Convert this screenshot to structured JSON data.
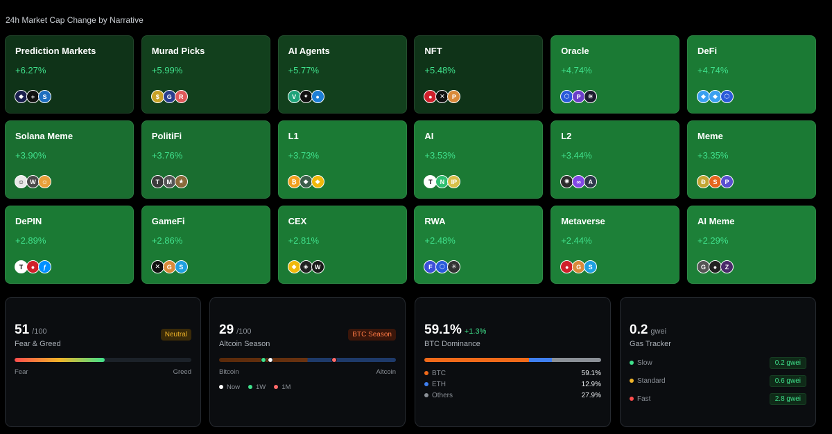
{
  "page_title": "24h Market Cap Change by Narrative",
  "tiles": [
    {
      "name": "Prediction Markets",
      "change": "+6.27%",
      "bg": "#0f3318",
      "coins": [
        {
          "icon": "polymarket-icon",
          "bg": "#1a1f4d",
          "g": "◆"
        },
        {
          "icon": "plus-icon",
          "bg": "#111",
          "g": "+"
        },
        {
          "icon": "sx-icon",
          "bg": "#1e6fbf",
          "g": "S"
        }
      ]
    },
    {
      "name": "Murad Picks",
      "change": "+5.99%",
      "bg": "#12401d",
      "coins": [
        {
          "icon": "spx-icon",
          "bg": "#c9a227",
          "g": "$"
        },
        {
          "icon": "gigachad-icon",
          "bg": "#2a3f8f",
          "g": "G"
        },
        {
          "icon": "retardio-icon",
          "bg": "#e05a5a",
          "g": "R"
        }
      ]
    },
    {
      "name": "AI Agents",
      "change": "+5.77%",
      "bg": "#12401d",
      "coins": [
        {
          "icon": "virtuals-icon",
          "bg": "#1fa37a",
          "g": "V"
        },
        {
          "icon": "ai16z-icon",
          "bg": "#111",
          "g": "✦"
        },
        {
          "icon": "aixbt-icon",
          "bg": "#1d7fd6",
          "g": "●"
        }
      ]
    },
    {
      "name": "NFT",
      "change": "+5.48%",
      "bg": "#0f3318",
      "coins": [
        {
          "icon": "apecoin-icon",
          "bg": "#d0202b",
          "g": "●"
        },
        {
          "icon": "x-icon",
          "bg": "#111",
          "g": "✕"
        },
        {
          "icon": "pengu-icon",
          "bg": "#d98a3a",
          "g": "P"
        }
      ]
    },
    {
      "name": "Oracle",
      "change": "+4.74%",
      "bg": "#1b7a34",
      "coins": [
        {
          "icon": "chainlink-icon",
          "bg": "#2a5ada",
          "g": "⬡"
        },
        {
          "icon": "pyth-icon",
          "bg": "#6b3fc9",
          "g": "P"
        },
        {
          "icon": "api3-icon",
          "bg": "#1b1b2e",
          "g": "≋"
        }
      ]
    },
    {
      "name": "DeFi",
      "change": "+4.74%",
      "bg": "#1b7a34",
      "coins": [
        {
          "icon": "lido-icon",
          "bg": "#3aa0f0",
          "g": "◆"
        },
        {
          "icon": "uniswap-icon",
          "bg": "#3aa0f0",
          "g": "◆"
        },
        {
          "icon": "chainlink-icon",
          "bg": "#2a5ada",
          "g": "⬡"
        }
      ]
    },
    {
      "name": "Solana Meme",
      "change": "+3.90%",
      "bg": "#1a6e30",
      "coins": [
        {
          "icon": "bonk-icon",
          "bg": "#e9e9e9",
          "g": "☺"
        },
        {
          "icon": "wif-icon",
          "bg": "#4a4a4a",
          "g": "W"
        },
        {
          "icon": "popcat-icon",
          "bg": "#e8a03a",
          "g": "☺"
        }
      ]
    },
    {
      "name": "PolitiFi",
      "change": "+3.76%",
      "bg": "#1a6e30",
      "coins": [
        {
          "icon": "trump-icon",
          "bg": "#3a3a3a",
          "g": "T"
        },
        {
          "icon": "melania-icon",
          "bg": "#555",
          "g": "M"
        },
        {
          "icon": "maga-icon",
          "bg": "#8a6a3a",
          "g": "★"
        }
      ]
    },
    {
      "name": "L1",
      "change": "+3.73%",
      "bg": "#1b7a34",
      "coins": [
        {
          "icon": "bitcoin-icon",
          "bg": "#f2a01e",
          "g": "₿"
        },
        {
          "icon": "ethereum-icon",
          "bg": "#3b5e4a",
          "g": "◆"
        },
        {
          "icon": "bnb-icon",
          "bg": "#f0b90b",
          "g": "◆"
        }
      ]
    },
    {
      "name": "AI",
      "change": "+3.53%",
      "bg": "#1b7a34",
      "coins": [
        {
          "icon": "tao-icon",
          "bg": "#fff",
          "g": "T"
        },
        {
          "icon": "near-icon",
          "bg": "#2fbf71",
          "g": "N"
        },
        {
          "icon": "ip-icon",
          "bg": "#d8c04a",
          "g": "IP"
        }
      ]
    },
    {
      "name": "L2",
      "change": "+3.44%",
      "bg": "#1b7a34",
      "coins": [
        {
          "icon": "mantle-icon",
          "bg": "#2c2c2c",
          "g": "✺"
        },
        {
          "icon": "polygon-icon",
          "bg": "#8247e5",
          "g": "∞"
        },
        {
          "icon": "arbitrum-icon",
          "bg": "#2d374b",
          "g": "A"
        }
      ]
    },
    {
      "name": "Meme",
      "change": "+3.35%",
      "bg": "#1b7a34",
      "coins": [
        {
          "icon": "doge-icon",
          "bg": "#c2a633",
          "g": "Ð"
        },
        {
          "icon": "shib-icon",
          "bg": "#e5661e",
          "g": "S"
        },
        {
          "icon": "pepe-icon",
          "bg": "#5a4fcf",
          "g": "P"
        }
      ]
    },
    {
      "name": "DePIN",
      "change": "+2.89%",
      "bg": "#1b7a34",
      "coins": [
        {
          "icon": "theta-icon",
          "bg": "#fff",
          "g": "T"
        },
        {
          "icon": "render-icon",
          "bg": "#d0202b",
          "g": "●"
        },
        {
          "icon": "filecoin-icon",
          "bg": "#0090ff",
          "g": "ƒ"
        }
      ]
    },
    {
      "name": "GameFi",
      "change": "+2.86%",
      "bg": "#1b7a34",
      "coins": [
        {
          "icon": "immutable-icon",
          "bg": "#111",
          "g": "✕"
        },
        {
          "icon": "gala-icon",
          "bg": "#d98a3a",
          "g": "G"
        },
        {
          "icon": "sand-icon",
          "bg": "#1ea0e0",
          "g": "S"
        }
      ]
    },
    {
      "name": "CEX",
      "change": "+2.81%",
      "bg": "#1b7a34",
      "coins": [
        {
          "icon": "bnb-icon",
          "bg": "#f0b90b",
          "g": "◆"
        },
        {
          "icon": "okb-icon",
          "bg": "#222",
          "g": "◈"
        },
        {
          "icon": "wbt-icon",
          "bg": "#1a1a1a",
          "g": "W"
        }
      ]
    },
    {
      "name": "RWA",
      "change": "+2.48%",
      "bg": "#1d8038",
      "coins": [
        {
          "icon": "ondo-icon",
          "bg": "#3d4fd8",
          "g": "F"
        },
        {
          "icon": "chainlink-icon",
          "bg": "#2a5ada",
          "g": "⬡"
        },
        {
          "icon": "stellar-icon",
          "bg": "#333",
          "g": "✳"
        }
      ]
    },
    {
      "name": "Metaverse",
      "change": "+2.44%",
      "bg": "#1d8038",
      "coins": [
        {
          "icon": "apecoin-icon",
          "bg": "#d0202b",
          "g": "●"
        },
        {
          "icon": "gala-icon",
          "bg": "#d98a3a",
          "g": "G"
        },
        {
          "icon": "sand-icon",
          "bg": "#1ea0e0",
          "g": "S"
        }
      ]
    },
    {
      "name": "AI Meme",
      "change": "+2.29%",
      "bg": "#1d8038",
      "coins": [
        {
          "icon": "goat-icon",
          "bg": "#555",
          "g": "G"
        },
        {
          "icon": "fartcoin-icon",
          "bg": "#222",
          "g": "●"
        },
        {
          "icon": "zerebro-icon",
          "bg": "#4a2a6a",
          "g": "Z"
        }
      ]
    }
  ],
  "fear_greed": {
    "value": "51",
    "max": "/100",
    "label": "Fear & Greed",
    "badge": "Neutral",
    "badge_color": "#f0b429",
    "badge_bg": "#3a2a08",
    "fill": 0.51,
    "left": "Fear",
    "right": "Greed"
  },
  "altcoin": {
    "value": "29",
    "max": "/100",
    "label": "Altcoin Season",
    "badge": "BTC Season",
    "badge_color": "#ff7a45",
    "badge_bg": "#3a160a",
    "left": "Bitcoin",
    "right": "Altcoin",
    "markers": [
      {
        "name": "Now",
        "pos": 0.29,
        "color": "#ffffff"
      },
      {
        "name": "1W",
        "pos": 0.25,
        "color": "#3fe08b"
      },
      {
        "name": "1M",
        "pos": 0.65,
        "color": "#ff6b6b"
      }
    ]
  },
  "dominance": {
    "value": "59.1%",
    "delta": "+1.3%",
    "label": "BTC Dominance",
    "items": [
      {
        "name": "BTC",
        "pct": "59.1%",
        "share": 59.1,
        "color": "#f06a1a"
      },
      {
        "name": "ETH",
        "pct": "12.9%",
        "share": 12.9,
        "color": "#3f7ff0"
      },
      {
        "name": "Others",
        "pct": "27.9%",
        "share": 27.9,
        "color": "#8b9097"
      }
    ]
  },
  "gas": {
    "value": "0.2",
    "unit": "gwei",
    "label": "Gas Tracker",
    "rows": [
      {
        "name": "Slow",
        "val": "0.2 gwei",
        "color": "#3fe08b"
      },
      {
        "name": "Standard",
        "val": "0.6 gwei",
        "color": "#f0b429"
      },
      {
        "name": "Fast",
        "val": "2.8 gwei",
        "color": "#ff4d4d"
      }
    ]
  }
}
